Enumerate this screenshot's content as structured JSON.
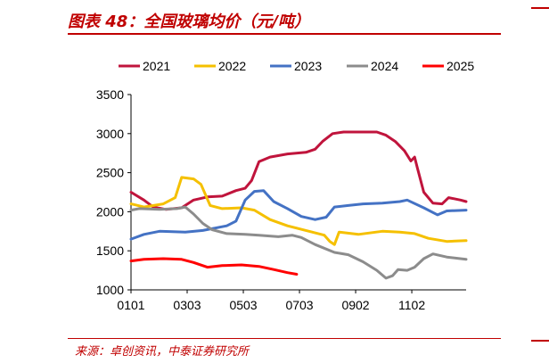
{
  "header": {
    "title": "图表 48：全国玻璃均价（元/吨）"
  },
  "footer": {
    "source": "来源：卓创资讯，中泰证券研究所"
  },
  "chart_data": {
    "type": "line",
    "title": "图表 48：全国玻璃均价（元/吨）",
    "xlabel": "",
    "ylabel": "",
    "x_ticks": [
      "0101",
      "0303",
      "0503",
      "0703",
      "0902",
      "1102"
    ],
    "y_ticks": [
      1000,
      1500,
      2000,
      2500,
      3000,
      3500
    ],
    "ylim": [
      1000,
      3500
    ],
    "grid": false,
    "legend_position": "top",
    "series": [
      {
        "name": "2021",
        "color": "#c0143c",
        "points": [
          [
            "01-01",
            2250
          ],
          [
            "01-15",
            2150
          ],
          [
            "01-25",
            2060
          ],
          [
            "02-08",
            2030
          ],
          [
            "02-25",
            2050
          ],
          [
            "03-10",
            2150
          ],
          [
            "03-25",
            2190
          ],
          [
            "04-10",
            2200
          ],
          [
            "04-25",
            2270
          ],
          [
            "05-05",
            2300
          ],
          [
            "05-12",
            2400
          ],
          [
            "05-20",
            2640
          ],
          [
            "06-01",
            2700
          ],
          [
            "06-20",
            2740
          ],
          [
            "07-10",
            2760
          ],
          [
            "07-20",
            2800
          ],
          [
            "07-28",
            2900
          ],
          [
            "08-08",
            3000
          ],
          [
            "08-20",
            3020
          ],
          [
            "09-10",
            3020
          ],
          [
            "09-25",
            3020
          ],
          [
            "10-05",
            2980
          ],
          [
            "10-15",
            2900
          ],
          [
            "10-25",
            2780
          ],
          [
            "11-01",
            2650
          ],
          [
            "11-05",
            2700
          ],
          [
            "11-08",
            2560
          ],
          [
            "11-15",
            2250
          ],
          [
            "11-25",
            2110
          ],
          [
            "12-05",
            2100
          ],
          [
            "12-12",
            2180
          ],
          [
            "12-25",
            2150
          ],
          [
            "12-31",
            2130
          ]
        ]
      },
      {
        "name": "2022",
        "color": "#f5c000",
        "points": [
          [
            "01-01",
            2100
          ],
          [
            "01-15",
            2060
          ],
          [
            "02-05",
            2100
          ],
          [
            "02-18",
            2180
          ],
          [
            "02-25",
            2440
          ],
          [
            "03-10",
            2420
          ],
          [
            "03-18",
            2350
          ],
          [
            "03-28",
            2080
          ],
          [
            "04-10",
            2040
          ],
          [
            "05-01",
            2050
          ],
          [
            "05-15",
            2020
          ],
          [
            "06-01",
            1900
          ],
          [
            "06-20",
            1820
          ],
          [
            "07-10",
            1760
          ],
          [
            "07-30",
            1700
          ],
          [
            "08-05",
            1620
          ],
          [
            "08-10",
            1580
          ],
          [
            "08-15",
            1740
          ],
          [
            "09-05",
            1710
          ],
          [
            "10-01",
            1750
          ],
          [
            "10-20",
            1740
          ],
          [
            "11-05",
            1720
          ],
          [
            "11-20",
            1660
          ],
          [
            "12-10",
            1620
          ],
          [
            "12-31",
            1630
          ]
        ]
      },
      {
        "name": "2023",
        "color": "#4472c4",
        "points": [
          [
            "01-01",
            1650
          ],
          [
            "01-15",
            1710
          ],
          [
            "02-01",
            1750
          ],
          [
            "03-01",
            1740
          ],
          [
            "03-20",
            1760
          ],
          [
            "04-15",
            1820
          ],
          [
            "04-25",
            1880
          ],
          [
            "05-05",
            2150
          ],
          [
            "05-15",
            2260
          ],
          [
            "05-25",
            2270
          ],
          [
            "06-05",
            2130
          ],
          [
            "06-20",
            2040
          ],
          [
            "07-05",
            1940
          ],
          [
            "07-20",
            1900
          ],
          [
            "08-01",
            1930
          ],
          [
            "08-10",
            2060
          ],
          [
            "08-25",
            2080
          ],
          [
            "09-10",
            2100
          ],
          [
            "10-01",
            2110
          ],
          [
            "10-20",
            2130
          ],
          [
            "10-28",
            2150
          ],
          [
            "11-15",
            2050
          ],
          [
            "11-30",
            1960
          ],
          [
            "12-10",
            2010
          ],
          [
            "12-31",
            2020
          ]
        ]
      },
      {
        "name": "2024",
        "color": "#8c8c8c",
        "points": [
          [
            "01-01",
            2020
          ],
          [
            "01-10",
            2040
          ],
          [
            "02-01",
            2030
          ],
          [
            "02-20",
            2040
          ],
          [
            "03-01",
            2060
          ],
          [
            "03-10",
            1970
          ],
          [
            "03-20",
            1850
          ],
          [
            "03-30",
            1770
          ],
          [
            "04-15",
            1720
          ],
          [
            "05-05",
            1710
          ],
          [
            "05-20",
            1700
          ],
          [
            "06-10",
            1680
          ],
          [
            "06-25",
            1700
          ],
          [
            "07-05",
            1670
          ],
          [
            "07-20",
            1580
          ],
          [
            "08-10",
            1480
          ],
          [
            "08-25",
            1450
          ],
          [
            "09-10",
            1360
          ],
          [
            "09-25",
            1250
          ],
          [
            "10-05",
            1150
          ],
          [
            "10-12",
            1180
          ],
          [
            "10-18",
            1260
          ],
          [
            "10-28",
            1250
          ],
          [
            "11-05",
            1290
          ],
          [
            "11-15",
            1400
          ],
          [
            "11-25",
            1460
          ],
          [
            "12-10",
            1420
          ],
          [
            "12-31",
            1390
          ]
        ]
      },
      {
        "name": "2025",
        "color": "#ff0000",
        "points": [
          [
            "01-01",
            1370
          ],
          [
            "01-15",
            1390
          ],
          [
            "02-05",
            1400
          ],
          [
            "02-25",
            1390
          ],
          [
            "03-10",
            1350
          ],
          [
            "03-25",
            1290
          ],
          [
            "04-10",
            1310
          ],
          [
            "05-01",
            1320
          ],
          [
            "05-20",
            1300
          ],
          [
            "06-05",
            1260
          ],
          [
            "06-20",
            1220
          ],
          [
            "06-30",
            1200
          ]
        ]
      }
    ]
  }
}
